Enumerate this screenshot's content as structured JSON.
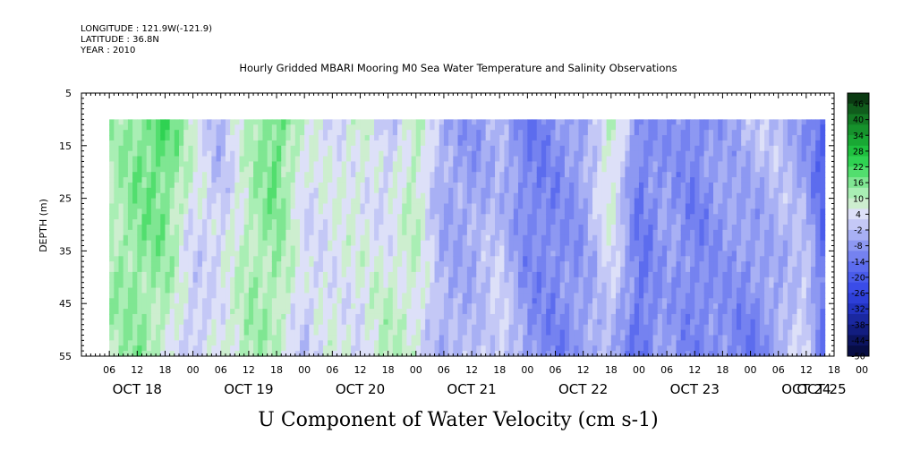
{
  "header": {
    "longitude": "LONGITUDE : 121.9W(-121.9)",
    "latitude": "LATITUDE : 36.8N",
    "year": "YEAR : 2010"
  },
  "chart_data": {
    "type": "heatmap",
    "title": "Hourly Gridded MBARI Mooring M0 Sea Water Temperature and Salinity Observations",
    "xlabel": "U Component of Water Velocity (cm s-1)",
    "ylabel": "DEPTH (m)",
    "x_range_hours": [
      0,
      162
    ],
    "data_start_hour": 6,
    "data_end_hour": 160,
    "y_range": [
      5,
      55
    ],
    "y_inverted": true,
    "y_ticks": [
      5,
      15,
      25,
      35,
      45,
      55
    ],
    "data_depth_range": [
      10,
      55
    ],
    "x_tick_labels": [
      "06",
      "12",
      "18",
      "00",
      "06",
      "12",
      "18",
      "00",
      "06",
      "12",
      "18",
      "00",
      "06",
      "12",
      "18",
      "00",
      "06",
      "12",
      "18",
      "00",
      "06",
      "12",
      "18",
      "00",
      "06",
      "12",
      "18",
      "00"
    ],
    "x_tick_hours": [
      6,
      12,
      18,
      24,
      30,
      36,
      42,
      48,
      54,
      60,
      66,
      72,
      78,
      84,
      90,
      96,
      102,
      108,
      114,
      120,
      126,
      132,
      138,
      144,
      150,
      156,
      162,
      168
    ],
    "day_labels": [
      {
        "text": "OCT 18",
        "hour": 12
      },
      {
        "text": "OCT 19",
        "hour": 36
      },
      {
        "text": "OCT 20",
        "hour": 60
      },
      {
        "text": "OCT 21",
        "hour": 84
      },
      {
        "text": "OCT 22",
        "hour": 108
      },
      {
        "text": "OCT 23",
        "hour": 132
      },
      {
        "text": "OCT 24",
        "hour": 156
      },
      {
        "text": "OCT 25",
        "hour": 180
      }
    ],
    "colorbar": {
      "labels": [
        "46",
        "40",
        "34",
        "28",
        "22",
        "16",
        "10",
        "4",
        "-2",
        "-8",
        "-14",
        "-20",
        "-26",
        "-32",
        "-38",
        "-44",
        "-50"
      ],
      "colors": [
        "#0b3a12",
        "#105c1c",
        "#137a24",
        "#16922c",
        "#19a834",
        "#1fc03f",
        "#2fd252",
        "#52de6e",
        "#7fe692",
        "#a9eeb4",
        "#cdeecf",
        "#dde0f8",
        "#c4c8f6",
        "#a8b0f4",
        "#8d98f2",
        "#7582f0",
        "#5c6cee",
        "#4a5ceb",
        "#3a4ce8",
        "#2d3fd8",
        "#2233c0",
        "#1a28a0",
        "#121d80",
        "#0c1460",
        "#070d44"
      ]
    },
    "hourly_u_profile": [
      {
        "hour": 6,
        "shallow": 8,
        "deep": 10
      },
      {
        "hour": 12,
        "shallow": 14,
        "deep": 12
      },
      {
        "hour": 18,
        "shallow": 20,
        "deep": 6
      },
      {
        "hour": 24,
        "shallow": 6,
        "deep": -4
      },
      {
        "hour": 30,
        "shallow": -6,
        "deep": 6
      },
      {
        "hour": 36,
        "shallow": 8,
        "deep": 10
      },
      {
        "hour": 42,
        "shallow": 18,
        "deep": 8
      },
      {
        "hour": 48,
        "shallow": 4,
        "deep": -2
      },
      {
        "hour": 54,
        "shallow": 2,
        "deep": 4
      },
      {
        "hour": 60,
        "shallow": 6,
        "deep": 2
      },
      {
        "hour": 66,
        "shallow": -4,
        "deep": 10
      },
      {
        "hour": 72,
        "shallow": 10,
        "deep": 4
      },
      {
        "hour": 78,
        "shallow": -8,
        "deep": -6
      },
      {
        "hour": 84,
        "shallow": -10,
        "deep": -4
      },
      {
        "hour": 90,
        "shallow": -6,
        "deep": 2
      },
      {
        "hour": 96,
        "shallow": -16,
        "deep": -10
      },
      {
        "hour": 102,
        "shallow": -12,
        "deep": -14
      },
      {
        "hour": 108,
        "shallow": -8,
        "deep": -10
      },
      {
        "hour": 114,
        "shallow": 10,
        "deep": -4
      },
      {
        "hour": 120,
        "shallow": -14,
        "deep": -18
      },
      {
        "hour": 126,
        "shallow": -10,
        "deep": -8
      },
      {
        "hour": 132,
        "shallow": -14,
        "deep": -14
      },
      {
        "hour": 138,
        "shallow": -8,
        "deep": -12
      },
      {
        "hour": 144,
        "shallow": -4,
        "deep": -16
      },
      {
        "hour": 150,
        "shallow": -2,
        "deep": -8
      },
      {
        "hour": 156,
        "shallow": -12,
        "deep": 4
      },
      {
        "hour": 160,
        "shallow": -22,
        "deep": -18
      }
    ]
  }
}
